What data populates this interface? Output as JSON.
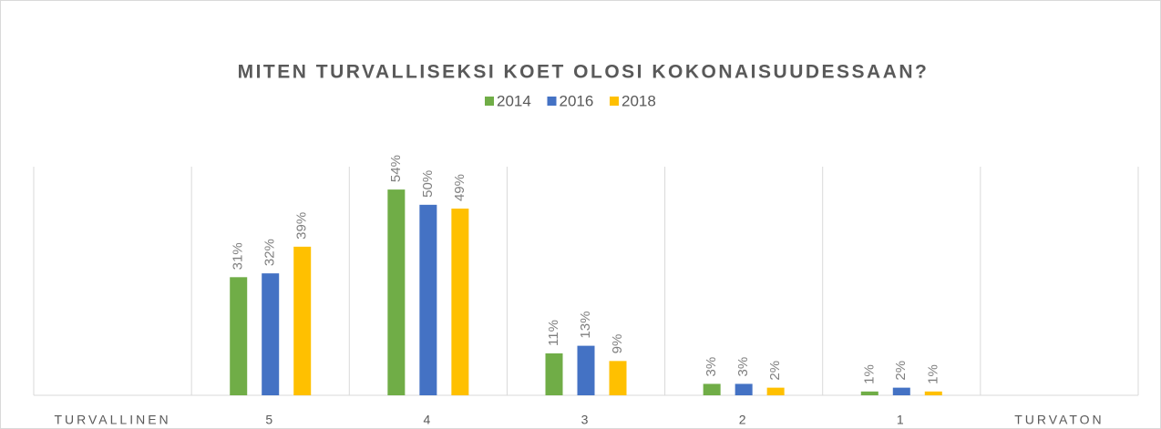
{
  "chart_data": {
    "type": "bar",
    "title": "MITEN TURVALLISEKSI KOET OLOSI KOKONAISUUDESSAAN?",
    "categories": [
      "TURVALLINEN",
      "5",
      "4",
      "3",
      "2",
      "1",
      "TURVATON"
    ],
    "series": [
      {
        "name": "2014",
        "color": "#70ad47",
        "values": [
          null,
          31,
          54,
          11,
          3,
          1,
          null
        ],
        "value_labels": [
          null,
          "31%",
          "54%",
          "11%",
          "3%",
          "1%",
          null
        ]
      },
      {
        "name": "2016",
        "color": "#4472c4",
        "values": [
          null,
          32,
          50,
          13,
          3,
          2,
          null
        ],
        "value_labels": [
          null,
          "32%",
          "50%",
          "13%",
          "3%",
          "2%",
          null
        ]
      },
      {
        "name": "2018",
        "color": "#ffc000",
        "values": [
          null,
          39,
          49,
          9,
          2,
          1,
          null
        ],
        "value_labels": [
          null,
          "39%",
          "49%",
          "9%",
          "2%",
          "1%",
          null
        ]
      }
    ],
    "ylim": [
      0,
      60
    ]
  }
}
